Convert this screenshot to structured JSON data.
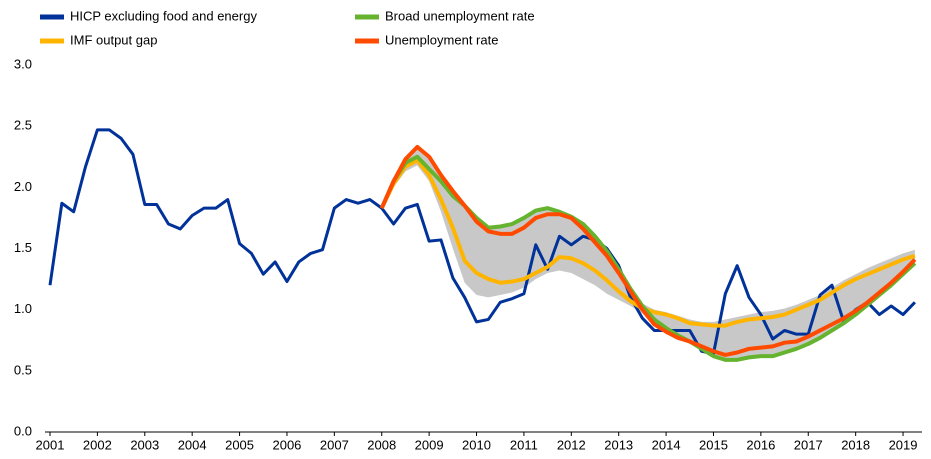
{
  "chart_data": {
    "type": "line",
    "x": [
      2001,
      2001.25,
      2001.5,
      2001.75,
      2002,
      2002.25,
      2002.5,
      2002.75,
      2003,
      2003.25,
      2003.5,
      2003.75,
      2004,
      2004.25,
      2004.5,
      2004.75,
      2005,
      2005.25,
      2005.5,
      2005.75,
      2006,
      2006.25,
      2006.5,
      2006.75,
      2007,
      2007.25,
      2007.5,
      2007.75,
      2008,
      2008.25,
      2008.5,
      2008.75,
      2009,
      2009.25,
      2009.5,
      2009.75,
      2010,
      2010.25,
      2010.5,
      2010.75,
      2011,
      2011.25,
      2011.5,
      2011.75,
      2012,
      2012.25,
      2012.5,
      2012.75,
      2013,
      2013.25,
      2013.5,
      2013.75,
      2014,
      2014.25,
      2014.5,
      2014.75,
      2015,
      2015.25,
      2015.5,
      2015.75,
      2016,
      2016.25,
      2016.5,
      2016.75,
      2017,
      2017.25,
      2017.5,
      2017.75,
      2018,
      2018.25,
      2018.5,
      2018.75,
      2019,
      2019.25
    ],
    "series": [
      {
        "name": "HICP excluding food and energy",
        "color": "#003299",
        "values": [
          1.2,
          1.87,
          1.8,
          2.17,
          2.47,
          2.47,
          2.4,
          2.27,
          1.86,
          1.86,
          1.7,
          1.66,
          1.77,
          1.83,
          1.83,
          1.9,
          1.54,
          1.46,
          1.29,
          1.39,
          1.23,
          1.39,
          1.46,
          1.49,
          1.83,
          1.9,
          1.87,
          1.9,
          1.83,
          1.7,
          1.83,
          1.86,
          1.56,
          1.57,
          1.26,
          1.1,
          0.9,
          0.92,
          1.06,
          1.09,
          1.13,
          1.53,
          1.33,
          1.6,
          1.53,
          1.6,
          1.57,
          1.5,
          1.36,
          1.1,
          0.93,
          0.83,
          0.83,
          0.83,
          0.83,
          0.66,
          0.64,
          1.13,
          1.36,
          1.1,
          0.96,
          0.76,
          0.83,
          0.8,
          0.8,
          1.12,
          1.2,
          0.9,
          1.0,
          1.06,
          0.96,
          1.03,
          0.96,
          1.06
        ]
      },
      {
        "name": "IMF output gap",
        "color": "#ffb400",
        "values": [
          null,
          null,
          null,
          null,
          null,
          null,
          null,
          null,
          null,
          null,
          null,
          null,
          null,
          null,
          null,
          null,
          null,
          null,
          null,
          null,
          null,
          null,
          null,
          null,
          null,
          null,
          null,
          null,
          1.83,
          2.03,
          2.17,
          2.22,
          2.1,
          1.9,
          1.67,
          1.4,
          1.3,
          1.25,
          1.22,
          1.23,
          1.25,
          1.3,
          1.35,
          1.43,
          1.42,
          1.38,
          1.32,
          1.24,
          1.15,
          1.07,
          1.01,
          0.98,
          0.96,
          0.93,
          0.89,
          0.88,
          0.87,
          0.87,
          0.9,
          0.92,
          0.93,
          0.94,
          0.96,
          1.0,
          1.04,
          1.08,
          1.14,
          1.2,
          1.25,
          1.29,
          1.33,
          1.37,
          1.41,
          1.44
        ]
      },
      {
        "name": "Broad unemployment rate",
        "color": "#65b32e",
        "values": [
          null,
          null,
          null,
          null,
          null,
          null,
          null,
          null,
          null,
          null,
          null,
          null,
          null,
          null,
          null,
          null,
          null,
          null,
          null,
          null,
          null,
          null,
          null,
          null,
          null,
          null,
          null,
          null,
          1.83,
          2.05,
          2.2,
          2.25,
          2.15,
          2.05,
          1.93,
          1.85,
          1.75,
          1.67,
          1.68,
          1.7,
          1.75,
          1.81,
          1.83,
          1.8,
          1.76,
          1.7,
          1.6,
          1.48,
          1.33,
          1.17,
          1.03,
          0.92,
          0.85,
          0.79,
          0.74,
          0.68,
          0.62,
          0.59,
          0.59,
          0.61,
          0.62,
          0.62,
          0.65,
          0.68,
          0.72,
          0.77,
          0.83,
          0.89,
          0.96,
          1.04,
          1.12,
          1.2,
          1.29,
          1.38
        ]
      },
      {
        "name": "Unemployment rate",
        "color": "#ff4b00",
        "values": [
          null,
          null,
          null,
          null,
          null,
          null,
          null,
          null,
          null,
          null,
          null,
          null,
          null,
          null,
          null,
          null,
          null,
          null,
          null,
          null,
          null,
          null,
          null,
          null,
          null,
          null,
          null,
          null,
          1.83,
          2.05,
          2.23,
          2.33,
          2.25,
          2.1,
          1.97,
          1.85,
          1.72,
          1.64,
          1.62,
          1.62,
          1.67,
          1.75,
          1.78,
          1.78,
          1.75,
          1.66,
          1.55,
          1.44,
          1.3,
          1.15,
          1.0,
          0.88,
          0.82,
          0.77,
          0.74,
          0.7,
          0.66,
          0.63,
          0.65,
          0.68,
          0.69,
          0.7,
          0.73,
          0.74,
          0.78,
          0.83,
          0.88,
          0.93,
          0.99,
          1.06,
          1.14,
          1.22,
          1.31,
          1.41
        ]
      }
    ],
    "band": {
      "color": "#c8c8c8",
      "lower": [
        null,
        null,
        null,
        null,
        null,
        null,
        null,
        null,
        null,
        null,
        null,
        null,
        null,
        null,
        null,
        null,
        null,
        null,
        null,
        null,
        null,
        null,
        null,
        null,
        null,
        null,
        null,
        null,
        1.83,
        2.0,
        2.13,
        2.18,
        2.05,
        1.8,
        1.5,
        1.22,
        1.12,
        1.1,
        1.12,
        1.14,
        1.18,
        1.25,
        1.3,
        1.32,
        1.3,
        1.25,
        1.2,
        1.13,
        1.08,
        1.03,
        0.97,
        0.88,
        0.82,
        0.76,
        0.72,
        0.67,
        0.61,
        0.58,
        0.58,
        0.6,
        0.61,
        0.61,
        0.64,
        0.67,
        0.71,
        0.76,
        0.82,
        0.88,
        0.95,
        1.03,
        1.11,
        1.19,
        1.28,
        1.37
      ],
      "upper": [
        null,
        null,
        null,
        null,
        null,
        null,
        null,
        null,
        null,
        null,
        null,
        null,
        null,
        null,
        null,
        null,
        null,
        null,
        null,
        null,
        null,
        null,
        null,
        null,
        null,
        null,
        null,
        null,
        1.83,
        2.06,
        2.24,
        2.35,
        2.26,
        2.11,
        1.97,
        1.86,
        1.76,
        1.68,
        1.69,
        1.71,
        1.76,
        1.82,
        1.84,
        1.81,
        1.77,
        1.71,
        1.61,
        1.49,
        1.34,
        1.18,
        1.05,
        1.0,
        0.98,
        0.95,
        0.92,
        0.9,
        0.9,
        0.92,
        0.94,
        0.96,
        0.98,
        0.99,
        1.01,
        1.04,
        1.08,
        1.12,
        1.18,
        1.24,
        1.29,
        1.34,
        1.38,
        1.42,
        1.46,
        1.49
      ]
    },
    "xlim": [
      2001,
      2019.4
    ],
    "xticks": [
      2001,
      2002,
      2003,
      2004,
      2005,
      2006,
      2007,
      2008,
      2009,
      2010,
      2011,
      2012,
      2013,
      2014,
      2015,
      2016,
      2017,
      2018,
      2019
    ],
    "ylim": [
      0,
      3
    ],
    "yticks": [
      {
        "value": 0,
        "label": "0.0"
      },
      0.5,
      {
        "value": 1,
        "label": "1.0"
      },
      1.5,
      {
        "value": 2,
        "label": "2.0"
      },
      2.5,
      {
        "value": 3,
        "label": "3.0"
      }
    ],
    "grid": false,
    "legend": "top-left"
  }
}
